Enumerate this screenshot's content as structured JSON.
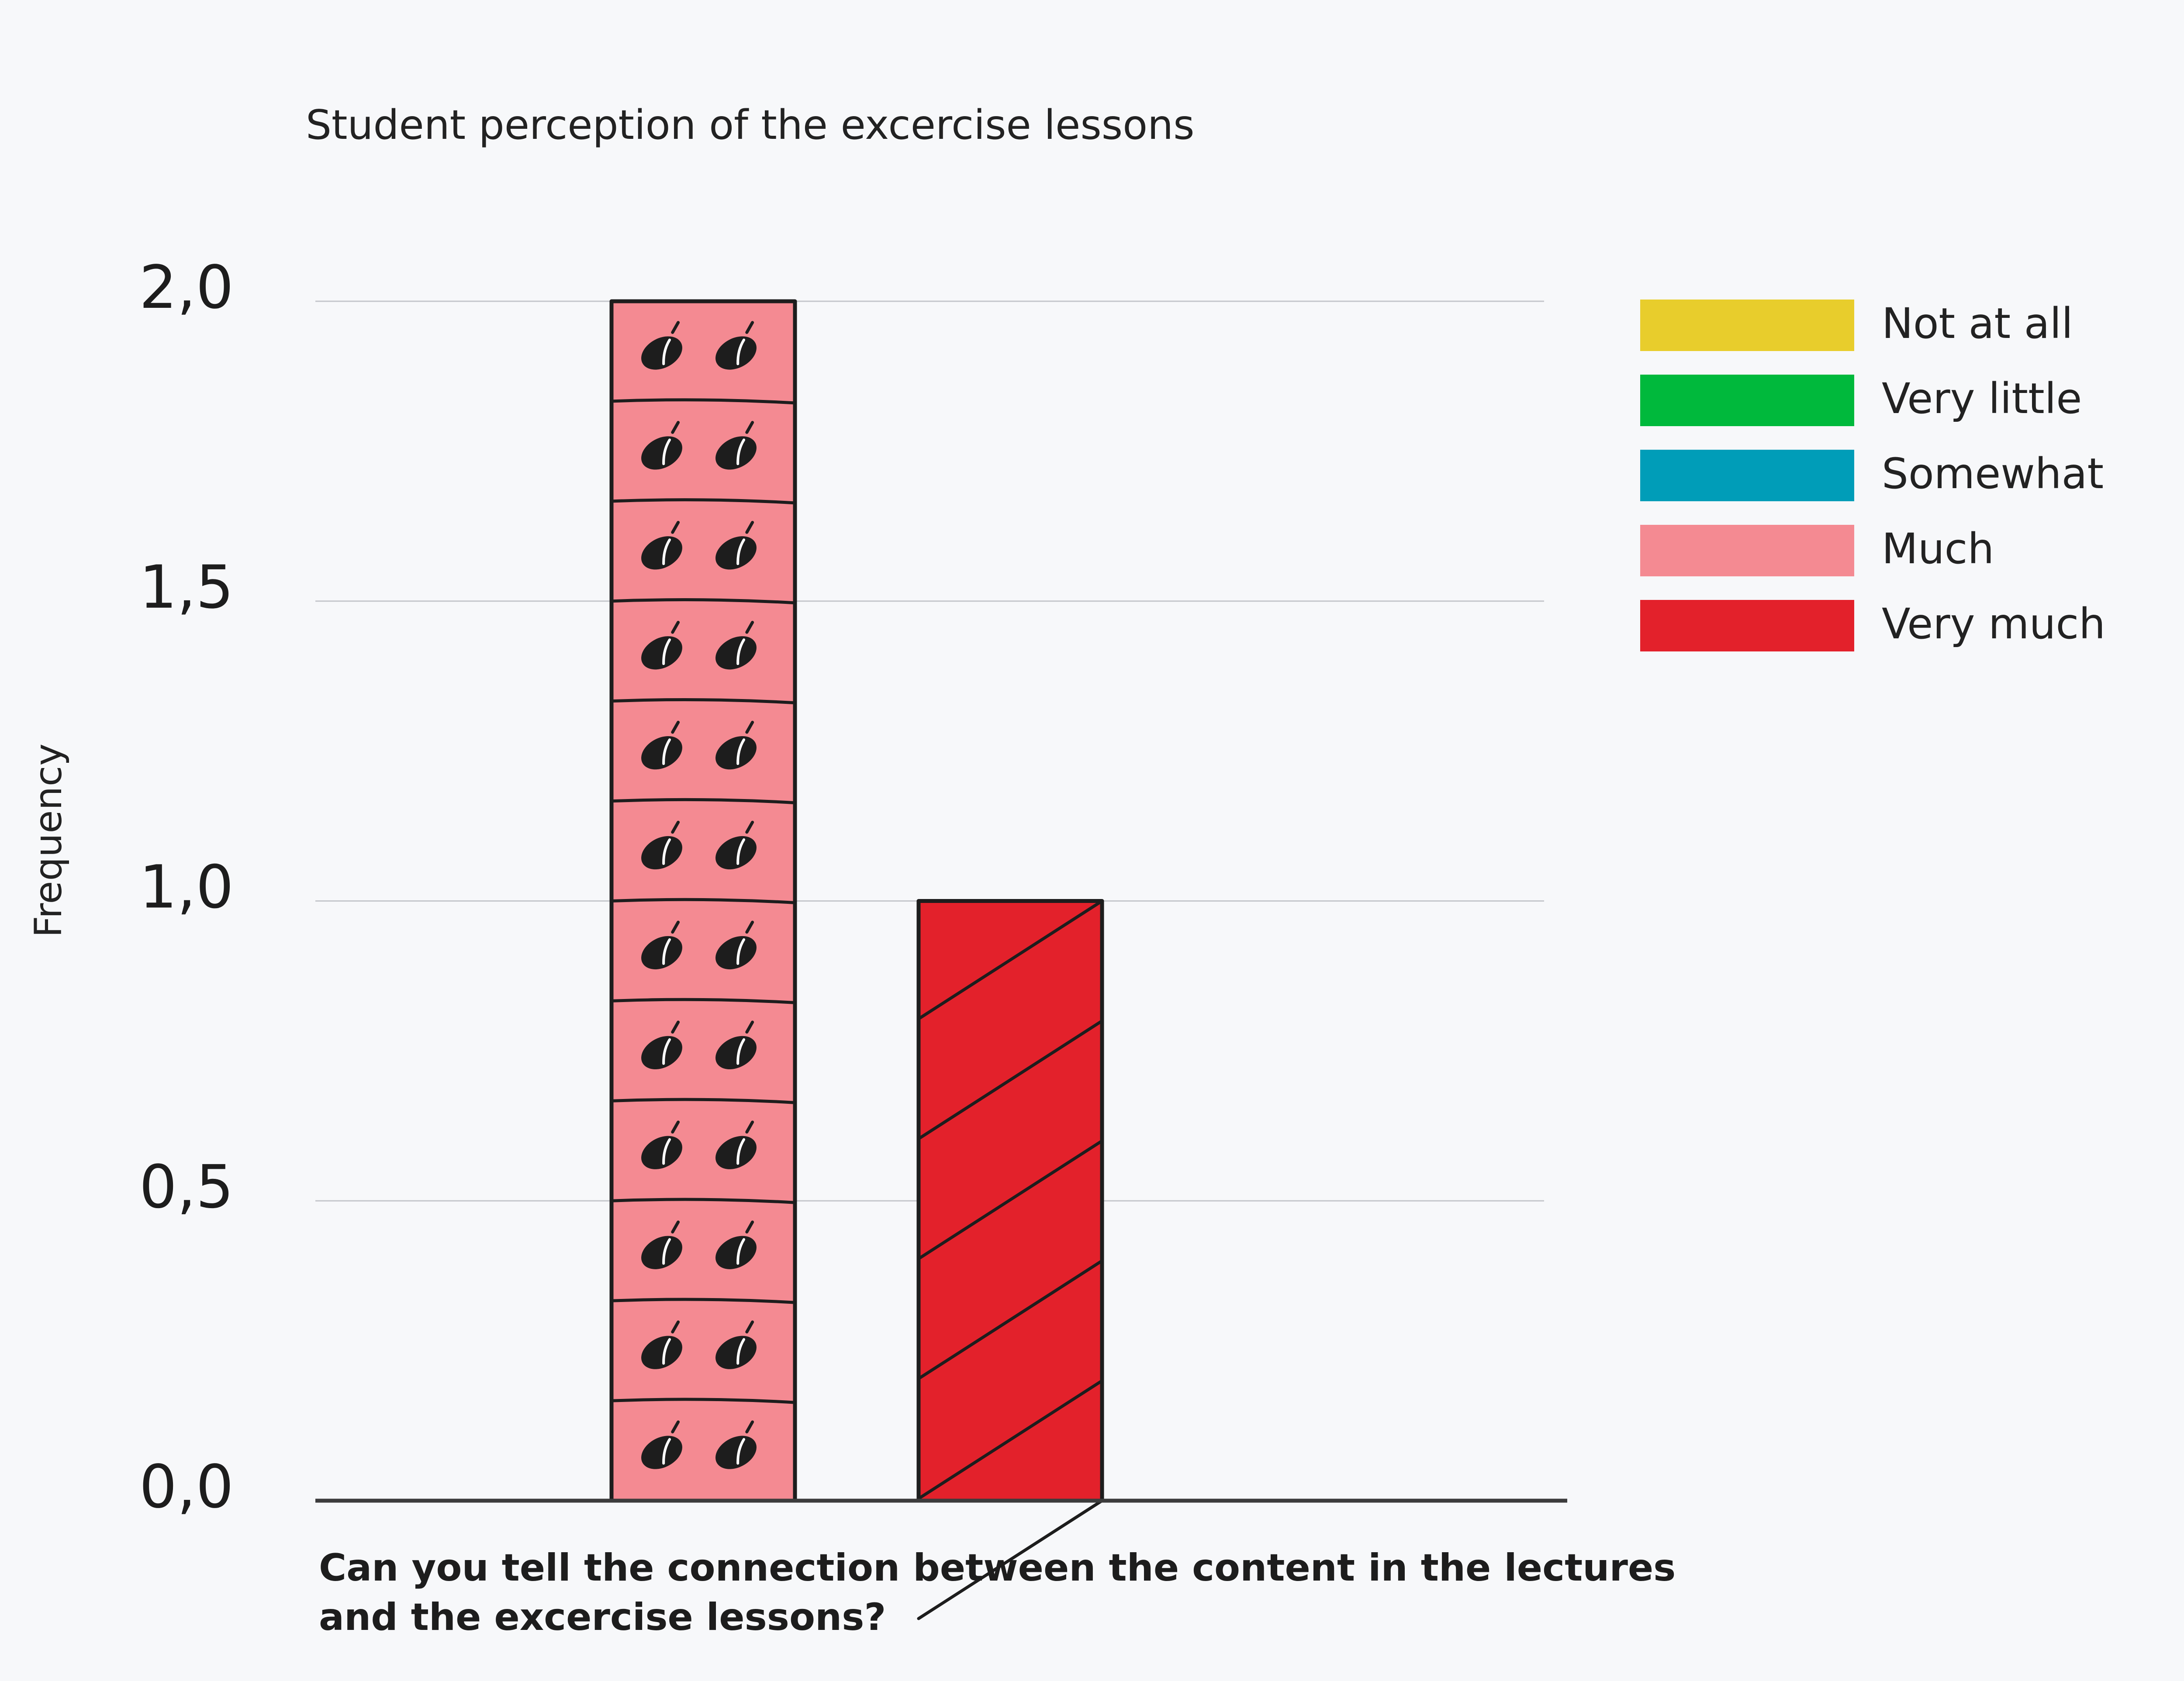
{
  "chart_data": {
    "type": "bar",
    "title": "Student perception of the excercise lessons",
    "xlabel": "Can you tell the connection between the content in the lectures and the excercise lessons?",
    "ylabel": "Frequency",
    "ylim": [
      0,
      2.0
    ],
    "yticks": [
      {
        "value": 0.0,
        "label": "0,0"
      },
      {
        "value": 0.5,
        "label": "0,5"
      },
      {
        "value": 1.0,
        "label": "1,0"
      },
      {
        "value": 1.5,
        "label": "1,5"
      },
      {
        "value": 2.0,
        "label": "2,0"
      }
    ],
    "grid": true,
    "legend_position": "top-right",
    "series": [
      {
        "name": "Not at all",
        "value": 0,
        "color": "#e8cd2c"
      },
      {
        "name": "Very little",
        "value": 0,
        "color": "#00b93c"
      },
      {
        "name": "Somewhat",
        "value": 0,
        "color": "#009db8"
      },
      {
        "name": "Much",
        "value": 2,
        "color": "#f48a92",
        "pattern": "seed-icon-tiles"
      },
      {
        "name": "Very much",
        "value": 1,
        "color": "#e3212b",
        "pattern": "diagonal-stripes"
      }
    ]
  }
}
